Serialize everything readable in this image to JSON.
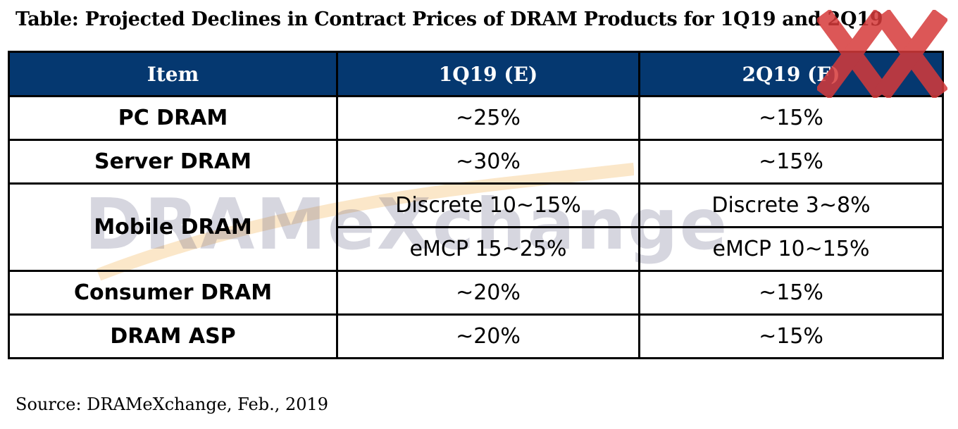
{
  "title": "Table: Projected Declines in Contract Prices of DRAM Products for 1Q19 and 2Q19",
  "watermark": "DRAMeXchange",
  "corner_logo_icon": "red-double-x-logo-icon",
  "colors": {
    "header_bg": "#053870",
    "header_text": "#ffffff",
    "logo_red": "#d63a3a"
  },
  "chart_data": {
    "type": "table",
    "title": "Table: Projected Declines in Contract Prices of DRAM Products for 1Q19 and 2Q19",
    "columns": [
      "Item",
      "1Q19 (E)",
      "2Q19 (F)"
    ],
    "rows": [
      {
        "item": "PC DRAM",
        "q1": "~25%",
        "q2": "~15%"
      },
      {
        "item": "Server DRAM",
        "q1": "~30%",
        "q2": "~15%"
      },
      {
        "item": "Mobile DRAM",
        "q1": "Discrete 10~15%",
        "q2": "Discrete 3~8%",
        "q1_b": "eMCP 15~25%",
        "q2_b": "eMCP 10~15%"
      },
      {
        "item": "Consumer DRAM",
        "q1": "~20%",
        "q2": "~15%"
      },
      {
        "item": "DRAM ASP",
        "q1": "~20%",
        "q2": "~15%"
      }
    ],
    "source": "Source: DRAMeXchange, Feb., 2019"
  }
}
